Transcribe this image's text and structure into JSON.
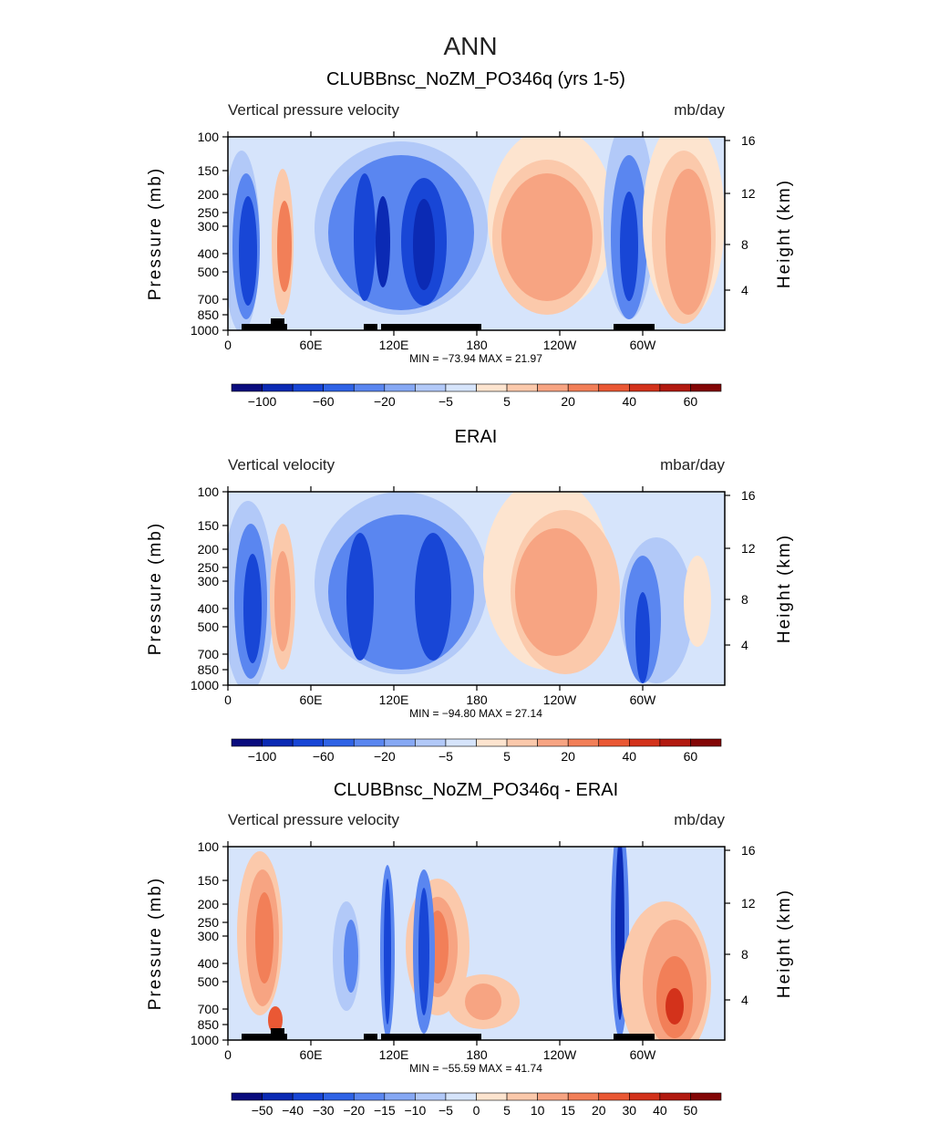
{
  "page_title": "ANN",
  "chart_data": [
    {
      "type": "contour",
      "title": "CLUBBnsc_NoZM_PO346q (yrs 1-5)",
      "left_label": "Vertical pressure velocity",
      "right_label": "mb/day",
      "ylabel": "Pressure (mb)",
      "ylabel_right": "Height (km)",
      "x_ticks": [
        "0",
        "60E",
        "120E",
        "180",
        "120W",
        "60W"
      ],
      "y_ticks": [
        "100",
        "150",
        "200",
        "250",
        "300",
        "400",
        "500",
        "700",
        "850",
        "1000"
      ],
      "y_ticks_right": [
        "16",
        "12",
        "8",
        "4"
      ],
      "stats": "MIN = −73.94   MAX =   21.97",
      "colorbar_labels": [
        "−100",
        "−60",
        "−20",
        "−5",
        "5",
        "20",
        "40",
        "60"
      ],
      "colorbar_colors": [
        "#0a0c7e",
        "#0b2ab4",
        "#1846d6",
        "#2f63e6",
        "#5a86f0",
        "#86a8f4",
        "#b2c9f8",
        "#d6e4fb",
        "#fde4cf",
        "#fbc9ab",
        "#f7a482",
        "#f27f58",
        "#ea5834",
        "#d3321b",
        "#b21a10",
        "#830606"
      ]
    },
    {
      "type": "contour",
      "title": "ERAI",
      "left_label": "Vertical velocity",
      "right_label": "mbar/day",
      "ylabel": "Pressure (mb)",
      "ylabel_right": "Height (km)",
      "x_ticks": [
        "0",
        "60E",
        "120E",
        "180",
        "120W",
        "60W"
      ],
      "y_ticks": [
        "100",
        "150",
        "200",
        "250",
        "300",
        "400",
        "500",
        "700",
        "850",
        "1000"
      ],
      "y_ticks_right": [
        "16",
        "12",
        "8",
        "4"
      ],
      "stats": "MIN = −94.80   MAX =   27.14",
      "colorbar_labels": [
        "−100",
        "−60",
        "−20",
        "−5",
        "5",
        "20",
        "40",
        "60"
      ],
      "colorbar_colors": [
        "#0a0c7e",
        "#0b2ab4",
        "#1846d6",
        "#2f63e6",
        "#5a86f0",
        "#86a8f4",
        "#b2c9f8",
        "#d6e4fb",
        "#fde4cf",
        "#fbc9ab",
        "#f7a482",
        "#f27f58",
        "#ea5834",
        "#d3321b",
        "#b21a10",
        "#830606"
      ]
    },
    {
      "type": "contour",
      "title": "CLUBBnsc_NoZM_PO346q - ERAI",
      "left_label": "Vertical pressure velocity",
      "right_label": "mb/day",
      "ylabel": "Pressure (mb)",
      "ylabel_right": "Height (km)",
      "x_ticks": [
        "0",
        "60E",
        "120E",
        "180",
        "120W",
        "60W"
      ],
      "y_ticks": [
        "100",
        "150",
        "200",
        "250",
        "300",
        "400",
        "500",
        "700",
        "850",
        "1000"
      ],
      "y_ticks_right": [
        "16",
        "12",
        "8",
        "4"
      ],
      "stats": "MIN = −55.59   MAX =   41.74",
      "colorbar_labels": [
        "−50",
        "−40",
        "−30",
        "−20",
        "−15",
        "−10",
        "−5",
        "0",
        "5",
        "10",
        "15",
        "20",
        "30",
        "40",
        "50"
      ],
      "colorbar_colors": [
        "#0a0c7e",
        "#0b2ab4",
        "#1846d6",
        "#2f63e6",
        "#5a86f0",
        "#86a8f4",
        "#b2c9f8",
        "#d6e4fb",
        "#fde4cf",
        "#fbc9ab",
        "#f7a482",
        "#f27f58",
        "#ea5834",
        "#d3321b",
        "#b21a10",
        "#830606"
      ]
    }
  ]
}
